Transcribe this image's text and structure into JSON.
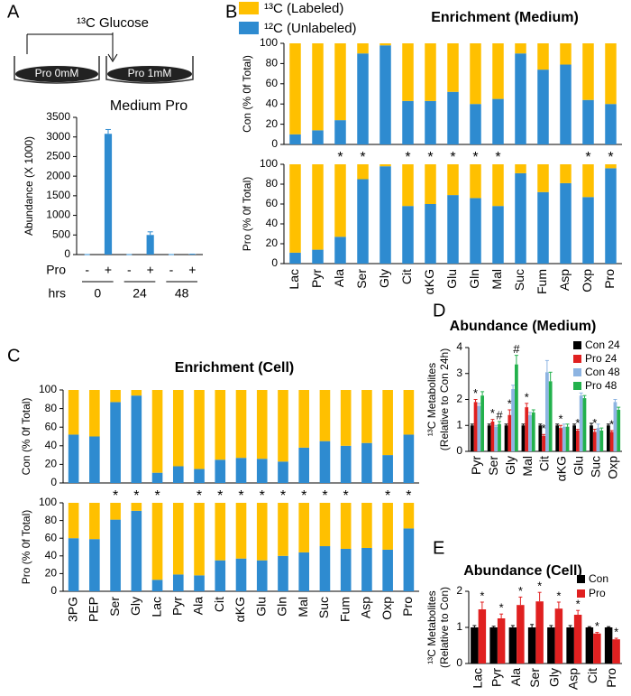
{
  "chart_data": [
    {
      "type": "bar",
      "panel": "A",
      "title": "Medium Pro",
      "y_label": "Abundance (X 1000)",
      "diagram": {
        "label": "¹³C Glucose",
        "dishes": [
          "Pro 0mM",
          "Pro 1mM"
        ]
      },
      "x_labels": [
        "Pro",
        "hrs"
      ],
      "categories": [
        "-",
        "+",
        "-",
        "+",
        "-",
        "+"
      ],
      "groups": [
        "0",
        "24",
        "48"
      ],
      "values": [
        0,
        3080,
        0,
        500,
        0,
        10
      ],
      "errors": [
        0,
        110,
        0,
        80,
        0,
        0
      ],
      "color": "#2e8bd0",
      "ylim": [
        0,
        3500
      ],
      "yticks": [
        0,
        500,
        1000,
        1500,
        2000,
        2500,
        3000,
        3500
      ]
    },
    {
      "type": "stacked_bar",
      "panel": "B",
      "title": "Enrichment (Medium)",
      "categories": [
        "Lac",
        "Pyr",
        "Ala",
        "Ser",
        "Gly",
        "Cit",
        "αKG",
        "Glu",
        "Gln",
        "Mal",
        "Suc",
        "Fum",
        "Asp",
        "Oxp",
        "Pro"
      ],
      "series": [
        {
          "name": "¹³C (Labeled)",
          "color": "#ffc000",
          "values": [
            [
              90,
              86,
              76,
              10,
              2,
              57,
              57,
              48,
              60,
              55,
              10,
              26,
              21,
              56,
              60
            ],
            [
              89,
              86,
              73,
              15,
              2,
              42,
              40,
              31,
              34,
              42,
              9,
              28,
              19,
              33,
              4
            ]
          ]
        },
        {
          "name": "¹²C (Unlabeled)",
          "color": "#2e8bd0",
          "values": [
            [
              10,
              14,
              24,
              90,
              98,
              43,
              43,
              52,
              40,
              45,
              90,
              74,
              79,
              44,
              40
            ],
            [
              11,
              14,
              27,
              85,
              98,
              58,
              60,
              69,
              66,
              58,
              91,
              72,
              81,
              67,
              96
            ]
          ]
        }
      ],
      "panels": [
        {
          "y_label": "Con  (% 0f Total)"
        },
        {
          "y_label": "Pro  (% 0f Total)",
          "significance": [
            null,
            null,
            "*",
            "*",
            null,
            "*",
            "*",
            "*",
            "*",
            "*",
            null,
            null,
            null,
            "*",
            "*"
          ]
        }
      ],
      "ylim": [
        0,
        100
      ],
      "yticks": [
        0,
        20,
        40,
        60,
        80,
        100
      ]
    },
    {
      "type": "stacked_bar",
      "panel": "C",
      "title": "Enrichment (Cell)",
      "categories": [
        "3PG",
        "PEP",
        "Ser",
        "Gly",
        "Lac",
        "Pyr",
        "Ala",
        "Cit",
        "αKG",
        "Glu",
        "Gln",
        "Mal",
        "Suc",
        "Fum",
        "Asp",
        "Oxp",
        "Pro"
      ],
      "series": [
        {
          "color": "#ffc000",
          "values": [
            [
              48,
              50,
              13,
              6,
              89,
              82,
              85,
              75,
              73,
              74,
              77,
              62,
              55,
              60,
              57,
              70,
              48
            ],
            [
              40,
              41,
              19,
              9,
              87,
              81,
              82,
              65,
              63,
              65,
              60,
              56,
              49,
              52,
              51,
              53,
              29
            ]
          ]
        },
        {
          "color": "#2e8bd0",
          "values": [
            [
              52,
              50,
              87,
              94,
              11,
              18,
              15,
              25,
              27,
              26,
              23,
              38,
              45,
              40,
              43,
              30,
              52
            ],
            [
              60,
              59,
              81,
              91,
              13,
              19,
              18,
              35,
              37,
              35,
              40,
              44,
              51,
              48,
              49,
              47,
              71
            ]
          ]
        }
      ],
      "panels": [
        {
          "y_label": "Con (% 0f Total)"
        },
        {
          "y_label": "Pro (% 0f Total)",
          "significance": [
            null,
            null,
            "*",
            "*",
            "*",
            null,
            "*",
            "*",
            "*",
            "*",
            "*",
            "*",
            "*",
            "*",
            null,
            "*",
            "*"
          ]
        }
      ],
      "ylim": [
        0,
        100
      ],
      "yticks": [
        0,
        20,
        40,
        60,
        80,
        100
      ]
    },
    {
      "type": "grouped_bar",
      "panel": "D",
      "title": "Abundance (Medium)",
      "y_label": [
        "¹³C Metabolites",
        "(Relative to Con 24h)"
      ],
      "categories": [
        "Pyr",
        "Ser",
        "Gly",
        "Mal",
        "Cit",
        "αKG",
        "Glu",
        "Suc",
        "Oxp"
      ],
      "series": [
        {
          "name": "Con 24",
          "color": "#000000",
          "values": [
            1,
            1,
            1,
            1,
            1,
            1,
            1,
            1,
            1
          ],
          "errors": [
            0.05,
            0.05,
            0.05,
            0.05,
            0.05,
            0.05,
            0.05,
            0.08,
            0.05
          ]
        },
        {
          "name": "Pro  24",
          "color": "#e02020",
          "values": [
            1.9,
            1.15,
            1.4,
            1.7,
            0.6,
            0.9,
            0.8,
            0.75,
            0.75
          ],
          "errors": [
            0.1,
            0.08,
            0.2,
            0.15,
            0.05,
            0.1,
            0.05,
            0.1,
            0.05
          ],
          "markers": [
            "*",
            "*",
            "*",
            "*",
            "*",
            "*",
            "*",
            "*",
            "*"
          ]
        },
        {
          "name": "Con 48",
          "color": "#8db4e2",
          "values": [
            1.75,
            0.95,
            2.4,
            1.4,
            3.05,
            0.95,
            2.15,
            0.9,
            1.9
          ],
          "errors": [
            0.1,
            0.05,
            0.15,
            0.1,
            0.45,
            0.1,
            0.1,
            0.15,
            0.1
          ]
        },
        {
          "name": "Pro  48",
          "color": "#22b14c",
          "values": [
            2.15,
            1.05,
            3.35,
            1.5,
            2.7,
            0.95,
            2.05,
            0.8,
            1.6
          ],
          "errors": [
            0.15,
            0.1,
            0.35,
            0.1,
            0.35,
            0.1,
            0.1,
            0.1,
            0.1
          ],
          "markers": [
            null,
            "#",
            "#",
            null,
            null,
            null,
            null,
            null,
            null
          ]
        }
      ],
      "ylim": [
        0,
        4
      ],
      "yticks": [
        0,
        1,
        2,
        3,
        4
      ],
      "legend": "right"
    },
    {
      "type": "grouped_bar",
      "panel": "E",
      "title": "Abundance (Cell)",
      "y_label": [
        "¹³C Metabolites",
        "(Relative to Con)"
      ],
      "categories": [
        "Lac",
        "Pyr",
        "Ala",
        "Ser",
        "Gly",
        "Asp",
        "Cit",
        "Pro"
      ],
      "series": [
        {
          "name": "Con",
          "color": "#000000",
          "values": [
            1,
            1,
            1,
            1,
            1,
            1,
            1,
            1
          ],
          "errors": [
            0.05,
            0.03,
            0.05,
            0.08,
            0.05,
            0.05,
            0.02,
            0.02
          ]
        },
        {
          "name": "Pro",
          "color": "#e02020",
          "values": [
            1.5,
            1.25,
            1.62,
            1.72,
            1.52,
            1.35,
            0.83,
            0.67
          ],
          "errors": [
            0.2,
            0.12,
            0.22,
            0.25,
            0.18,
            0.12,
            0.03,
            0.03
          ],
          "markers": [
            "*",
            "*",
            "*",
            "*",
            "*",
            "*",
            "*",
            "*"
          ]
        }
      ],
      "ylim": [
        0,
        2
      ],
      "yticks": [
        0,
        1,
        2
      ],
      "legend": "right"
    }
  ]
}
